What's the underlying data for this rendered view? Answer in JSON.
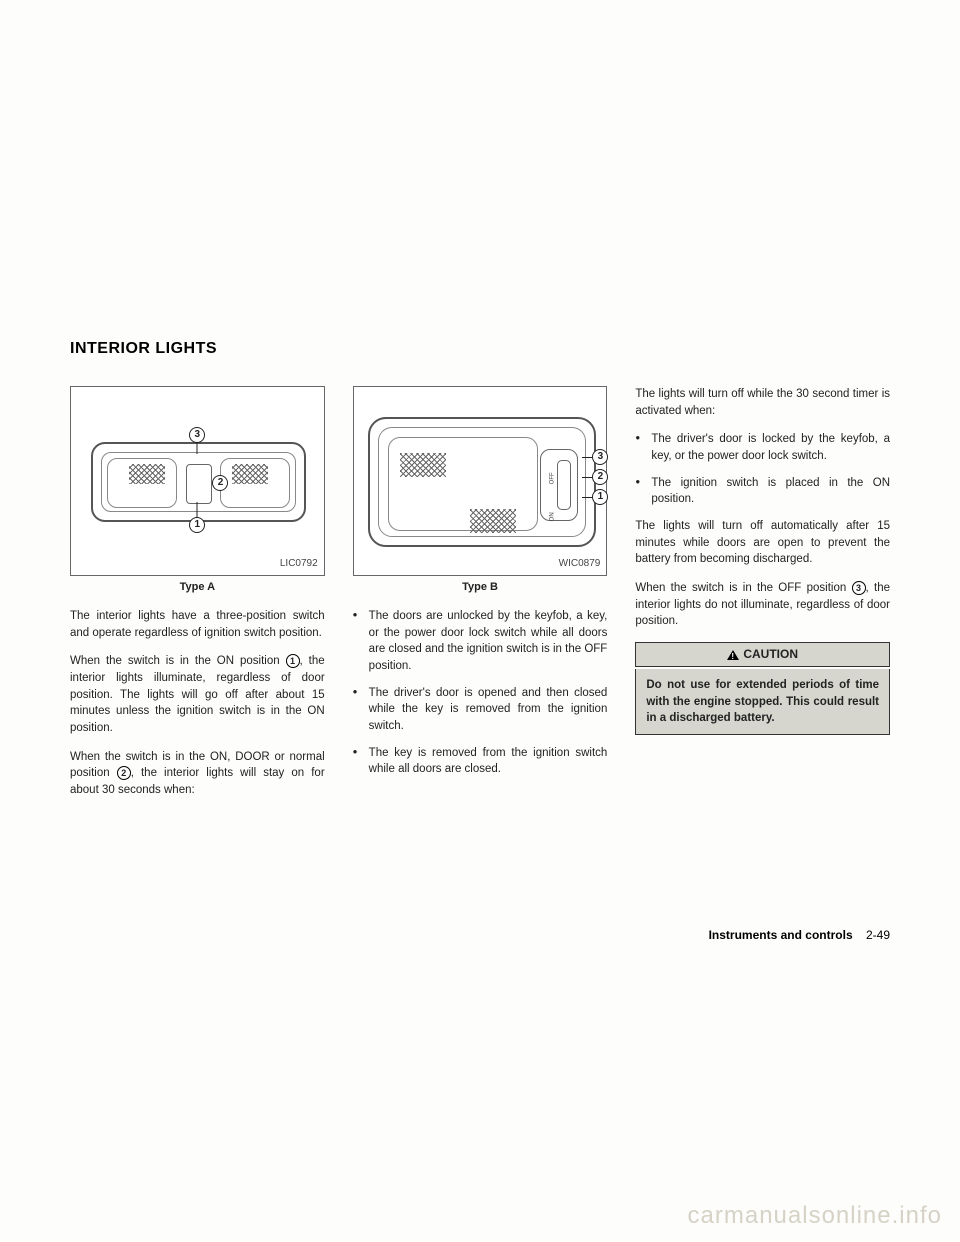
{
  "heading": "INTERIOR LIGHTS",
  "figureA": {
    "id": "LIC0792",
    "caption": "Type A"
  },
  "figureB": {
    "id": "WIC0879",
    "caption": "Type B"
  },
  "labels": {
    "off": "OFF",
    "on": "ON"
  },
  "col1": {
    "p1": "The interior lights have a three-position switch and operate regardless of ignition switch position.",
    "p2a": "When the switch is in the ON position ",
    "p2b": ", the interior lights illuminate, regardless of door position. The lights will go off after about 15 minutes unless the ignition switch is in the ON position.",
    "p3a": "When the switch is in the ON, DOOR or normal position ",
    "p3b": ", the interior lights will stay on for about 30 seconds when:"
  },
  "col2": {
    "b1": "The doors are unlocked by the keyfob, a key, or the power door lock switch while all doors are closed and the ignition switch is in the OFF position.",
    "b2": "The driver's door is opened and then closed while the key is removed from the ignition switch.",
    "b3": "The key is removed from the ignition switch while all doors are closed."
  },
  "col3": {
    "p1": "The lights will turn off while the 30 second timer is activated when:",
    "b1": "The driver's door is locked by the keyfob, a key, or the power door lock switch.",
    "b2": "The ignition switch is placed in the ON position.",
    "p2": "The lights will turn off automatically after 15 minutes while doors are open to prevent the battery from becoming discharged.",
    "p3a": "When the switch is in the OFF position ",
    "p3b": ", the interior lights do not illuminate, regardless of door position."
  },
  "caution": {
    "title": "CAUTION",
    "text": "Do not use for extended periods of time with the engine stopped. This could result in a discharged battery."
  },
  "footer": {
    "section": "Instruments and controls",
    "page": "2-49"
  },
  "watermark": "carmanualsonline.info",
  "circ": {
    "n1": "1",
    "n2": "2",
    "n3": "3"
  }
}
